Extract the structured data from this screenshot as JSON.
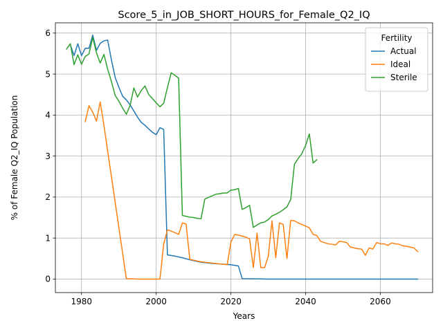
{
  "chart_data": {
    "type": "line",
    "title": "Score_5_in_JOB_SHORT_HOURS_for_Female_Q2_IQ",
    "xlabel": "Years",
    "ylabel": "% of Female Q2_IQ Population",
    "xlim": [
      1973,
      2074
    ],
    "ylim": [
      -0.33,
      6.25
    ],
    "xticks": [
      1980,
      2000,
      2020,
      2040,
      2060
    ],
    "yticks": [
      0,
      1,
      2,
      3,
      4,
      5,
      6
    ],
    "grid": true,
    "legend": {
      "title": "Fertility",
      "position": "top-right"
    },
    "series": [
      {
        "name": "Actual",
        "color": "#1f77b4",
        "points": [
          [
            1977,
            5.72
          ],
          [
            1978,
            5.45
          ],
          [
            1979,
            5.74
          ],
          [
            1980,
            5.45
          ],
          [
            1981,
            5.63
          ],
          [
            1982,
            5.63
          ],
          [
            1983,
            5.95
          ],
          [
            1984,
            5.58
          ],
          [
            1985,
            5.75
          ],
          [
            1986,
            5.81
          ],
          [
            1987,
            5.83
          ],
          [
            1988,
            5.35
          ],
          [
            1989,
            4.92
          ],
          [
            1990,
            4.68
          ],
          [
            1991,
            4.46
          ],
          [
            1992,
            4.37
          ],
          [
            1993,
            4.25
          ],
          [
            1994,
            4.1
          ],
          [
            1995,
            3.95
          ],
          [
            1996,
            3.82
          ],
          [
            1997,
            3.75
          ],
          [
            1998,
            3.66
          ],
          [
            1999,
            3.58
          ],
          [
            2000,
            3.52
          ],
          [
            2001,
            3.69
          ],
          [
            2002,
            3.65
          ],
          [
            2003,
            0.59
          ],
          [
            2005,
            0.56
          ],
          [
            2007,
            0.52
          ],
          [
            2009,
            0.47
          ],
          [
            2012,
            0.41
          ],
          [
            2015,
            0.38
          ],
          [
            2020,
            0.35
          ],
          [
            2022,
            0.32
          ],
          [
            2023,
            0.01
          ],
          [
            2030,
            0.0
          ],
          [
            2040,
            0.0
          ],
          [
            2050,
            0.0
          ],
          [
            2060,
            0.0
          ],
          [
            2070,
            0.0
          ]
        ]
      },
      {
        "name": "Ideal",
        "color": "#ff7f0e",
        "points": [
          [
            1981,
            3.84
          ],
          [
            1982,
            4.23
          ],
          [
            1983,
            4.07
          ],
          [
            1984,
            3.85
          ],
          [
            1985,
            4.32
          ],
          [
            1986,
            3.75
          ],
          [
            1987,
            3.12
          ],
          [
            1988,
            2.5
          ],
          [
            1989,
            1.88
          ],
          [
            1990,
            1.26
          ],
          [
            1991,
            0.63
          ],
          [
            1992,
            0.01
          ],
          [
            1995,
            0.0
          ],
          [
            2000,
            0.0
          ],
          [
            2001,
            0.0
          ],
          [
            2002,
            0.85
          ],
          [
            2003,
            1.2
          ],
          [
            2004,
            1.17
          ],
          [
            2005,
            1.13
          ],
          [
            2006,
            1.09
          ],
          [
            2007,
            1.37
          ],
          [
            2008,
            1.34
          ],
          [
            2009,
            0.48
          ],
          [
            2012,
            0.42
          ],
          [
            2015,
            0.39
          ],
          [
            2019,
            0.35
          ],
          [
            2020,
            0.9
          ],
          [
            2021,
            1.09
          ],
          [
            2022,
            1.07
          ],
          [
            2023,
            1.05
          ],
          [
            2024,
            1.02
          ],
          [
            2025,
            0.98
          ],
          [
            2026,
            0.28
          ],
          [
            2027,
            1.12
          ],
          [
            2028,
            0.28
          ],
          [
            2029,
            0.28
          ],
          [
            2030,
            0.55
          ],
          [
            2031,
            1.42
          ],
          [
            2032,
            0.52
          ],
          [
            2033,
            1.37
          ],
          [
            2034,
            1.33
          ],
          [
            2035,
            0.5
          ],
          [
            2036,
            1.43
          ],
          [
            2037,
            1.42
          ],
          [
            2038,
            1.37
          ],
          [
            2039,
            1.33
          ],
          [
            2040,
            1.29
          ],
          [
            2041,
            1.25
          ],
          [
            2042,
            1.09
          ],
          [
            2043,
            1.06
          ],
          [
            2044,
            0.92
          ],
          [
            2045,
            0.89
          ],
          [
            2046,
            0.86
          ],
          [
            2047,
            0.85
          ],
          [
            2048,
            0.83
          ],
          [
            2049,
            0.92
          ],
          [
            2050,
            0.91
          ],
          [
            2051,
            0.89
          ],
          [
            2052,
            0.78
          ],
          [
            2053,
            0.76
          ],
          [
            2054,
            0.74
          ],
          [
            2055,
            0.73
          ],
          [
            2056,
            0.58
          ],
          [
            2057,
            0.76
          ],
          [
            2058,
            0.73
          ],
          [
            2059,
            0.89
          ],
          [
            2060,
            0.86
          ],
          [
            2061,
            0.86
          ],
          [
            2062,
            0.82
          ],
          [
            2063,
            0.88
          ],
          [
            2064,
            0.86
          ],
          [
            2065,
            0.85
          ],
          [
            2066,
            0.81
          ],
          [
            2067,
            0.8
          ],
          [
            2068,
            0.78
          ],
          [
            2069,
            0.76
          ],
          [
            2070,
            0.67
          ]
        ]
      },
      {
        "name": "Sterile",
        "color": "#2ca02c",
        "points": [
          [
            1976,
            5.61
          ],
          [
            1977,
            5.74
          ],
          [
            1978,
            5.23
          ],
          [
            1979,
            5.47
          ],
          [
            1980,
            5.24
          ],
          [
            1981,
            5.43
          ],
          [
            1982,
            5.49
          ],
          [
            1983,
            5.89
          ],
          [
            1984,
            5.52
          ],
          [
            1985,
            5.27
          ],
          [
            1986,
            5.48
          ],
          [
            1987,
            5.12
          ],
          [
            1988,
            4.82
          ],
          [
            1989,
            4.48
          ],
          [
            1990,
            4.34
          ],
          [
            1991,
            4.17
          ],
          [
            1992,
            4.02
          ],
          [
            1993,
            4.23
          ],
          [
            1994,
            4.66
          ],
          [
            1995,
            4.44
          ],
          [
            1996,
            4.6
          ],
          [
            1997,
            4.71
          ],
          [
            1998,
            4.5
          ],
          [
            1999,
            4.4
          ],
          [
            2000,
            4.3
          ],
          [
            2001,
            4.2
          ],
          [
            2002,
            4.29
          ],
          [
            2003,
            4.67
          ],
          [
            2004,
            5.03
          ],
          [
            2005,
            4.97
          ],
          [
            2006,
            4.9
          ],
          [
            2007,
            1.55
          ],
          [
            2008,
            1.53
          ],
          [
            2009,
            1.51
          ],
          [
            2010,
            1.5
          ],
          [
            2011,
            1.48
          ],
          [
            2012,
            1.47
          ],
          [
            2013,
            1.95
          ],
          [
            2014,
            1.99
          ],
          [
            2015,
            2.03
          ],
          [
            2016,
            2.07
          ],
          [
            2017,
            2.08
          ],
          [
            2018,
            2.1
          ],
          [
            2019,
            2.1
          ],
          [
            2020,
            2.17
          ],
          [
            2021,
            2.18
          ],
          [
            2022,
            2.21
          ],
          [
            2023,
            1.7
          ],
          [
            2024,
            1.74
          ],
          [
            2025,
            1.8
          ],
          [
            2026,
            1.26
          ],
          [
            2027,
            1.32
          ],
          [
            2028,
            1.37
          ],
          [
            2029,
            1.39
          ],
          [
            2030,
            1.45
          ],
          [
            2031,
            1.54
          ],
          [
            2032,
            1.58
          ],
          [
            2033,
            1.63
          ],
          [
            2034,
            1.69
          ],
          [
            2035,
            1.76
          ],
          [
            2036,
            1.94
          ],
          [
            2037,
            2.8
          ],
          [
            2038,
            2.94
          ],
          [
            2039,
            3.06
          ],
          [
            2040,
            3.26
          ],
          [
            2041,
            3.54
          ],
          [
            2042,
            2.83
          ],
          [
            2043,
            2.91
          ]
        ]
      }
    ]
  }
}
